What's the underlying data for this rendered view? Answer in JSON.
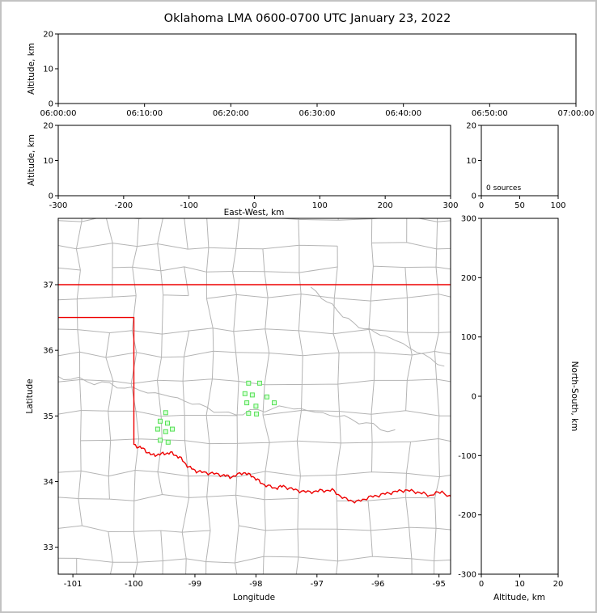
{
  "figure": {
    "title": "Oklahoma LMA 0600-0700 UTC January 23, 2022",
    "colors": {
      "state_border": "#ee0000",
      "county_line": "#b4b4b4",
      "source_fill": "#d8ffd8",
      "source_edge": "#55e055",
      "axis": "#000000",
      "frame": "#c2c2c2"
    }
  },
  "panels": {
    "time_height": {
      "ylabel": "Altitude, km",
      "yticks": [
        "0",
        "10",
        "20"
      ],
      "xtick_labels": [
        "06:00:00",
        "06:10:00",
        "06:20:00",
        "06:30:00",
        "06:40:00",
        "06:50:00",
        "07:00:00"
      ]
    },
    "ew_height": {
      "xlabel": "East-West, km",
      "ylabel": "Altitude, km",
      "xticks": [
        "-300",
        "-200",
        "-100",
        "0",
        "100",
        "200",
        "300"
      ],
      "yticks": [
        "0",
        "10",
        "20"
      ]
    },
    "histogram": {
      "annotation": "0 sources",
      "xticks": [
        "0",
        "50",
        "100"
      ],
      "yticks": [
        "0",
        "10",
        "20"
      ]
    },
    "map": {
      "xlabel": "Longitude",
      "ylabel": "Latitude",
      "xticks": [
        "-101",
        "-100",
        "-99",
        "-98",
        "-97",
        "-96",
        "-95"
      ],
      "yticks": [
        "33",
        "34",
        "35",
        "36",
        "37"
      ]
    },
    "ns_height": {
      "xlabel": "Altitude, km",
      "ylabel": "North-South, km",
      "xticks": [
        "0",
        "10",
        "20"
      ],
      "yticks": [
        "-300",
        "-200",
        "-100",
        "0",
        "100",
        "200",
        "300"
      ]
    }
  },
  "chart_data": [
    {
      "type": "scatter",
      "name": "altitude-vs-time",
      "ylabel": "Altitude, km",
      "x_tick_labels": [
        "06:00:00",
        "06:10:00",
        "06:20:00",
        "06:30:00",
        "06:40:00",
        "06:50:00",
        "07:00:00"
      ],
      "ylim": [
        0,
        20
      ],
      "points": []
    },
    {
      "type": "scatter",
      "name": "altitude-vs-east-west",
      "xlabel": "East-West, km",
      "ylabel": "Altitude, km",
      "xlim": [
        -300,
        300
      ],
      "ylim": [
        0,
        20
      ],
      "points": []
    },
    {
      "type": "bar",
      "name": "source-count-histogram",
      "annotation": "0 sources",
      "xlim": [
        0,
        100
      ],
      "ylim": [
        0,
        20
      ],
      "values": []
    },
    {
      "type": "scatter",
      "name": "plan-view",
      "xlabel": "Longitude",
      "ylabel": "Latitude",
      "xlim": [
        -101.24,
        -94.81
      ],
      "ylim": [
        32.59,
        38.01
      ],
      "marker": "open-square",
      "color": "#55e055",
      "points": [
        [
          -98.12,
          35.5
        ],
        [
          -97.94,
          35.5
        ],
        [
          -98.18,
          35.34
        ],
        [
          -98.06,
          35.32
        ],
        [
          -97.82,
          35.29
        ],
        [
          -98.15,
          35.2
        ],
        [
          -98.0,
          35.15
        ],
        [
          -97.7,
          35.2
        ],
        [
          -98.12,
          35.04
        ],
        [
          -97.99,
          35.03
        ],
        [
          -99.48,
          35.05
        ],
        [
          -99.57,
          34.92
        ],
        [
          -99.45,
          34.89
        ],
        [
          -99.61,
          34.8
        ],
        [
          -99.48,
          34.76
        ],
        [
          -99.37,
          34.8
        ],
        [
          -99.57,
          34.63
        ],
        [
          -99.44,
          34.6
        ]
      ]
    },
    {
      "type": "scatter",
      "name": "north-south-vs-altitude",
      "xlabel": "Altitude, km",
      "ylabel": "North-South, km",
      "xlim": [
        0,
        20
      ],
      "ylim": [
        -300,
        300
      ],
      "points": []
    }
  ]
}
